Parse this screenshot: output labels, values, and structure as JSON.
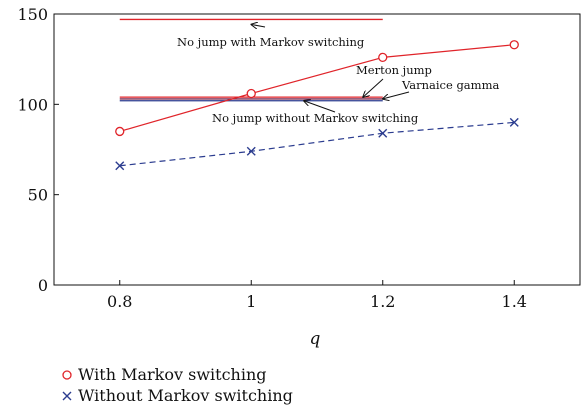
{
  "chart_data": {
    "type": "line",
    "xlabel": "q",
    "ylabel": "",
    "xlim": [
      0.7,
      1.5
    ],
    "ylim": [
      0,
      150
    ],
    "xticks": [
      "0.8",
      "1",
      "1.2",
      "1.4"
    ],
    "xtick_values": [
      0.8,
      1.0,
      1.2,
      1.4
    ],
    "yticks": [
      "0",
      "50",
      "100",
      "150"
    ],
    "ytick_values": [
      0,
      50,
      100,
      150
    ],
    "grid": false,
    "legend_position": "bottom-left",
    "series": [
      {
        "name": "With Markov switching",
        "marker": "circle",
        "line_style": "solid",
        "color": "#e0242a",
        "x": [
          0.8,
          1.0,
          1.2,
          1.4
        ],
        "y": [
          85,
          106,
          126,
          133
        ]
      },
      {
        "name": "Without Markov switching",
        "marker": "x",
        "line_style": "dashed",
        "color": "#2b3c8f",
        "x": [
          0.8,
          1.0,
          1.2,
          1.4
        ],
        "y": [
          66,
          74,
          84,
          90
        ]
      }
    ],
    "reference_lines": [
      {
        "y": 147,
        "x_range": [
          0.8,
          1.2
        ],
        "color": "#e0242a"
      },
      {
        "y": 104,
        "x_range": [
          0.8,
          1.2
        ],
        "color": "#e0242a"
      },
      {
        "y": 103,
        "x_range": [
          0.8,
          1.2
        ],
        "color": "#7a2a52"
      },
      {
        "y": 102,
        "x_range": [
          0.8,
          1.2
        ],
        "color": "#2b3c8f"
      }
    ],
    "annotations": [
      {
        "text": "No jump with Markov switching",
        "target": [
          1.0,
          147
        ]
      },
      {
        "text": "Merton jump",
        "target": [
          1.17,
          104
        ]
      },
      {
        "text": "Varnaice gamma",
        "target": [
          1.2,
          103
        ]
      },
      {
        "text": "No jump without Markov switching",
        "target": [
          1.08,
          102
        ]
      }
    ]
  }
}
